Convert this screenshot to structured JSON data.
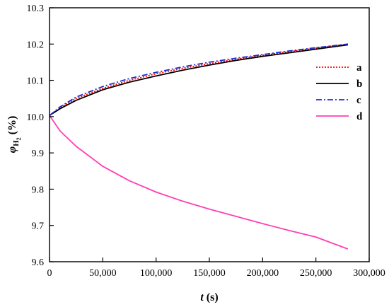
{
  "chart_data": {
    "type": "line",
    "xlabel_symbol": "t",
    "xlabel_unit": "(s)",
    "ylabel_symbol": "φ",
    "ylabel_subscript": "H",
    "ylabel_subsubscript": "2",
    "ylabel_unit": "(%)",
    "xlim": [
      0,
      300000
    ],
    "ylim": [
      9.6,
      10.3
    ],
    "x_ticks": [
      0,
      50000,
      100000,
      150000,
      200000,
      250000,
      300000
    ],
    "x_tick_labels": [
      "0",
      "50,000",
      "100,000",
      "150,000",
      "200,000",
      "250,000",
      "300,000"
    ],
    "y_ticks": [
      9.6,
      9.7,
      9.8,
      9.9,
      10.0,
      10.1,
      10.2,
      10.3
    ],
    "y_tick_labels": [
      "9.6",
      "9.7",
      "9.8",
      "9.9",
      "10.0",
      "10.1",
      "10.2",
      "10.3"
    ],
    "grid": false,
    "legend_position": "right",
    "x": [
      0,
      10000,
      25000,
      50000,
      75000,
      100000,
      125000,
      150000,
      175000,
      200000,
      225000,
      250000,
      280000
    ],
    "series": [
      {
        "name": "a",
        "color": "#ff0000",
        "style": "dotted",
        "values": [
          10.003,
          10.025,
          10.05,
          10.078,
          10.1,
          10.118,
          10.133,
          10.146,
          10.158,
          10.169,
          10.179,
          10.189,
          10.2
        ]
      },
      {
        "name": "b",
        "color": "#000000",
        "style": "solid",
        "values": [
          10.003,
          10.022,
          10.045,
          10.074,
          10.095,
          10.112,
          10.128,
          10.142,
          10.155,
          10.166,
          10.176,
          10.186,
          10.198
        ]
      },
      {
        "name": "c",
        "color": "#1f2fd0",
        "style": "dashdot",
        "values": [
          10.003,
          10.027,
          10.054,
          10.083,
          10.105,
          10.122,
          10.137,
          10.15,
          10.161,
          10.171,
          10.181,
          10.19,
          10.2
        ]
      },
      {
        "name": "d",
        "color": "#ff3fb4",
        "style": "solid",
        "values": [
          10.003,
          9.96,
          9.918,
          9.863,
          9.823,
          9.792,
          9.767,
          9.745,
          9.725,
          9.705,
          9.686,
          9.668,
          9.635
        ]
      }
    ]
  }
}
